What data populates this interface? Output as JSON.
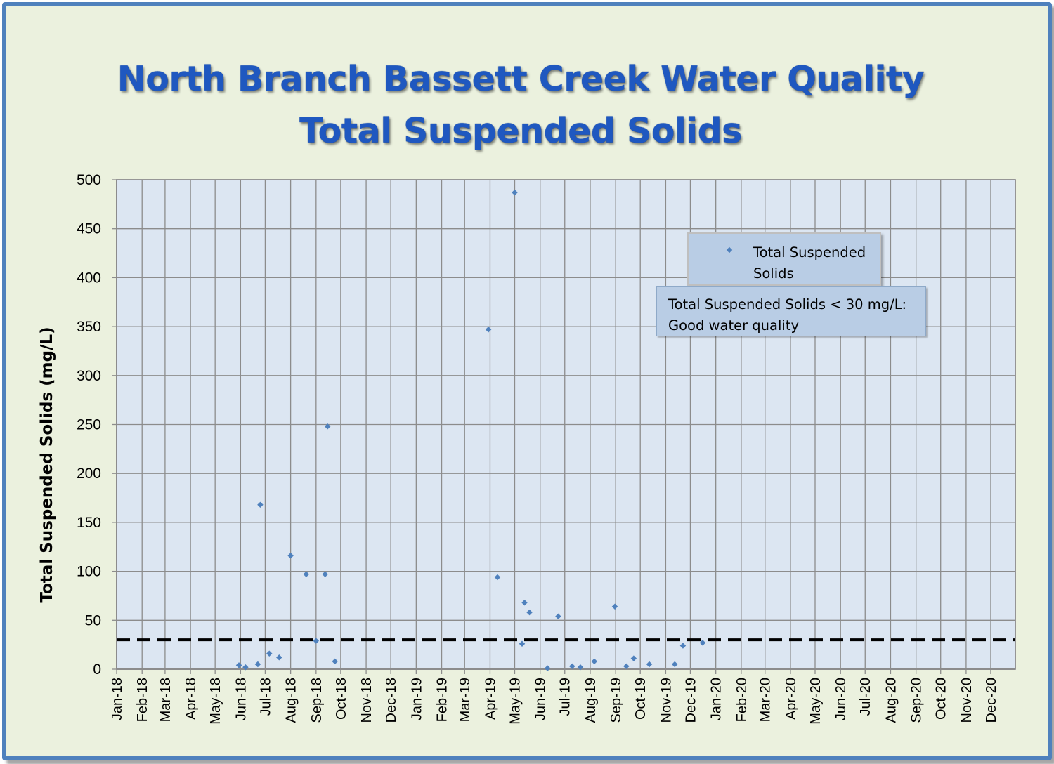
{
  "title_line1": "North Branch Bassett Creek Water Quality",
  "title_line2": "Total Suspended Solids",
  "legend_label": "Total Suspended Solids",
  "note_line1": "Total Suspended Solids < 30 mg/L:",
  "note_line2": "Good water quality",
  "colors": {
    "marker": "#4f81bd",
    "plot_bg": "#dce6f2",
    "frame_border": "#4f81bd",
    "background": "#ebf1de",
    "title": "#1f58c0"
  },
  "chart_data": {
    "type": "scatter",
    "title": "North Branch Bassett Creek Water Quality Total Suspended Solids",
    "ylabel": "Total Suspended Solids (mg/L)",
    "xlabel": "",
    "ylim": [
      0,
      500
    ],
    "xlim": [
      "2018-01-01",
      "2020-12-31"
    ],
    "yticks": [
      0,
      50,
      100,
      150,
      200,
      250,
      300,
      350,
      400,
      450,
      500
    ],
    "xtick_labels": [
      "Jan-18",
      "Feb-18",
      "Mar-18",
      "Apr-18",
      "May-18",
      "Jun-18",
      "Jul-18",
      "Aug-18",
      "Sep-18",
      "Oct-18",
      "Nov-18",
      "Dec-18",
      "Jan-19",
      "Feb-19",
      "Mar-19",
      "Apr-19",
      "May-19",
      "Jun-19",
      "Jul-19",
      "Aug-19",
      "Sep-19",
      "Oct-19",
      "Nov-19",
      "Dec-19",
      "Jan-20",
      "Feb-20",
      "Mar-20",
      "Apr-20",
      "May-20",
      "Jun-20",
      "Jul-20",
      "Aug-20",
      "Sep-20",
      "Oct-20",
      "Nov-20",
      "Dec-20"
    ],
    "grid": true,
    "legend_position": "top-right",
    "threshold": {
      "y": 30,
      "style": "dashed"
    },
    "series": [
      {
        "name": "Total Suspended Solids",
        "points": [
          {
            "x": "2018-05-30",
            "y": 4
          },
          {
            "x": "2018-06-07",
            "y": 2
          },
          {
            "x": "2018-06-22",
            "y": 5
          },
          {
            "x": "2018-06-25",
            "y": 168
          },
          {
            "x": "2018-07-06",
            "y": 16
          },
          {
            "x": "2018-07-18",
            "y": 12
          },
          {
            "x": "2018-08-01",
            "y": 116
          },
          {
            "x": "2018-08-20",
            "y": 97
          },
          {
            "x": "2018-09-01",
            "y": 29
          },
          {
            "x": "2018-09-12",
            "y": 97
          },
          {
            "x": "2018-09-15",
            "y": 248
          },
          {
            "x": "2018-09-24",
            "y": 8
          },
          {
            "x": "2019-03-30",
            "y": 347
          },
          {
            "x": "2019-04-10",
            "y": 94
          },
          {
            "x": "2019-05-01",
            "y": 487
          },
          {
            "x": "2019-05-10",
            "y": 26
          },
          {
            "x": "2019-05-13",
            "y": 68
          },
          {
            "x": "2019-05-19",
            "y": 58
          },
          {
            "x": "2019-06-10",
            "y": 1
          },
          {
            "x": "2019-06-23",
            "y": 54
          },
          {
            "x": "2019-07-10",
            "y": 3
          },
          {
            "x": "2019-07-20",
            "y": 2
          },
          {
            "x": "2019-08-06",
            "y": 8
          },
          {
            "x": "2019-08-31",
            "y": 64
          },
          {
            "x": "2019-09-14",
            "y": 3
          },
          {
            "x": "2019-09-23",
            "y": 11
          },
          {
            "x": "2019-10-12",
            "y": 5
          },
          {
            "x": "2019-11-12",
            "y": 5
          },
          {
            "x": "2019-11-22",
            "y": 24
          },
          {
            "x": "2019-12-16",
            "y": 27
          }
        ]
      }
    ]
  }
}
